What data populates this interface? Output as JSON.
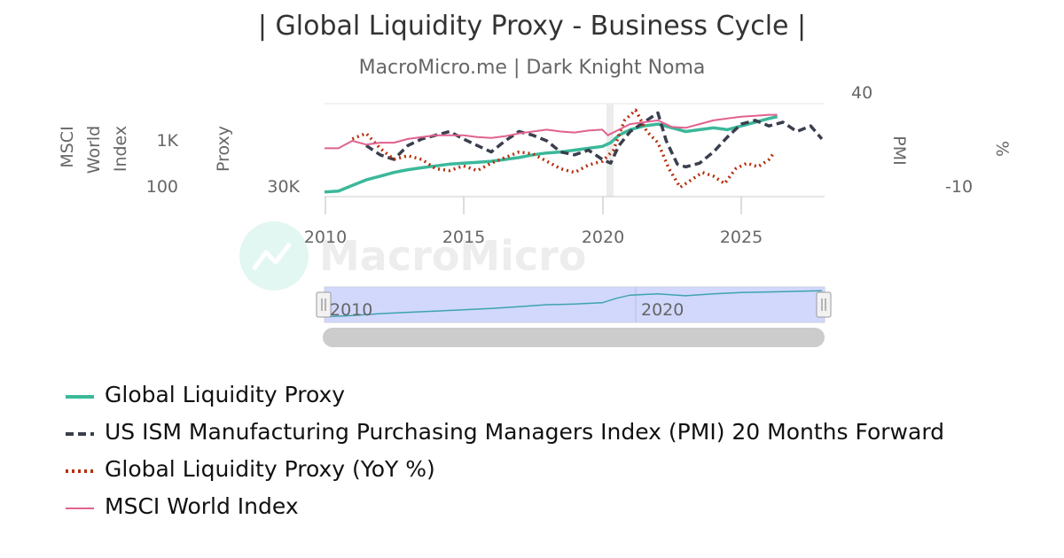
{
  "header": {
    "title": "| Global Liquidity Proxy - Business Cycle |",
    "subtitle": "MacroMicro.me | Dark Knight Noma"
  },
  "watermark": {
    "text": "MacroMicro"
  },
  "axes": {
    "msci_label": "MSCI World Index",
    "msci_ticks": [
      "1K",
      "100"
    ],
    "proxy_label": "Proxy",
    "proxy_ticks": [
      "30K"
    ],
    "pmi_label": "PMI",
    "pct_label": "%",
    "right_ticks": [
      "40",
      "-10"
    ],
    "x_ticks": [
      "2010",
      "2015",
      "2020",
      "2025"
    ]
  },
  "navigator": {
    "ticks": [
      "2010",
      "2020"
    ]
  },
  "legend": {
    "items": [
      {
        "label": "Global Liquidity Proxy",
        "color": "#3bb89a",
        "style": "solid"
      },
      {
        "label": "US ISM Manufacturing Purchasing Managers Index (PMI) 20 Months Forward",
        "color": "#3a3f4e",
        "style": "dashed"
      },
      {
        "label": "Global Liquidity Proxy (YoY %)",
        "color": "#b5300e",
        "style": "dotted"
      },
      {
        "label": "MSCI World Index",
        "color": "#e0628f",
        "style": "solid"
      }
    ]
  },
  "chart_data": {
    "type": "line",
    "title": "| Global Liquidity Proxy - Business Cycle |",
    "subtitle": "MacroMicro.me | Dark Knight Noma",
    "x_range": [
      2010,
      2028
    ],
    "series": [
      {
        "name": "Global Liquidity Proxy",
        "axis": "Proxy",
        "color": "#3bb89a",
        "points": [
          [
            2010.0,
            0.05
          ],
          [
            2010.5,
            0.06
          ],
          [
            2011.0,
            0.12
          ],
          [
            2011.5,
            0.18
          ],
          [
            2012.0,
            0.22
          ],
          [
            2012.5,
            0.26
          ],
          [
            2013.0,
            0.29
          ],
          [
            2013.5,
            0.31
          ],
          [
            2014.0,
            0.33
          ],
          [
            2014.5,
            0.35
          ],
          [
            2015.0,
            0.36
          ],
          [
            2015.5,
            0.37
          ],
          [
            2016.0,
            0.38
          ],
          [
            2016.5,
            0.4
          ],
          [
            2017.0,
            0.42
          ],
          [
            2017.5,
            0.45
          ],
          [
            2018.0,
            0.47
          ],
          [
            2018.5,
            0.48
          ],
          [
            2019.0,
            0.5
          ],
          [
            2019.5,
            0.52
          ],
          [
            2020.0,
            0.54
          ],
          [
            2020.3,
            0.58
          ],
          [
            2020.6,
            0.66
          ],
          [
            2021.0,
            0.72
          ],
          [
            2021.5,
            0.76
          ],
          [
            2022.0,
            0.78
          ],
          [
            2022.5,
            0.74
          ],
          [
            2023.0,
            0.7
          ],
          [
            2023.5,
            0.72
          ],
          [
            2024.0,
            0.74
          ],
          [
            2024.5,
            0.72
          ],
          [
            2025.0,
            0.76
          ],
          [
            2025.5,
            0.8
          ],
          [
            2026.0,
            0.84
          ],
          [
            2026.3,
            0.86
          ]
        ]
      },
      {
        "name": "US ISM Manufacturing Purchasing Managers Index (PMI) 20 Months Forward",
        "axis": "PMI",
        "color": "#3a3f4e",
        "points": [
          [
            2011.5,
            0.55
          ],
          [
            2012.0,
            0.45
          ],
          [
            2012.5,
            0.4
          ],
          [
            2013.0,
            0.55
          ],
          [
            2013.5,
            0.62
          ],
          [
            2014.0,
            0.66
          ],
          [
            2014.5,
            0.7
          ],
          [
            2015.0,
            0.62
          ],
          [
            2015.5,
            0.55
          ],
          [
            2016.0,
            0.48
          ],
          [
            2016.5,
            0.6
          ],
          [
            2017.0,
            0.7
          ],
          [
            2017.5,
            0.66
          ],
          [
            2018.0,
            0.6
          ],
          [
            2018.5,
            0.48
          ],
          [
            2019.0,
            0.45
          ],
          [
            2019.5,
            0.5
          ],
          [
            2020.0,
            0.4
          ],
          [
            2020.3,
            0.36
          ],
          [
            2020.6,
            0.55
          ],
          [
            2021.0,
            0.7
          ],
          [
            2021.5,
            0.8
          ],
          [
            2022.0,
            0.9
          ],
          [
            2022.3,
            0.6
          ],
          [
            2022.7,
            0.35
          ],
          [
            2023.0,
            0.32
          ],
          [
            2023.5,
            0.36
          ],
          [
            2024.0,
            0.48
          ],
          [
            2024.5,
            0.64
          ],
          [
            2025.0,
            0.78
          ],
          [
            2025.5,
            0.82
          ],
          [
            2026.0,
            0.76
          ],
          [
            2026.5,
            0.8
          ],
          [
            2027.0,
            0.7
          ],
          [
            2027.5,
            0.76
          ],
          [
            2027.9,
            0.62
          ]
        ]
      },
      {
        "name": "Global Liquidity Proxy (YoY %)",
        "axis": "%",
        "color": "#b5300e",
        "points": [
          [
            2011.0,
            0.62
          ],
          [
            2011.5,
            0.68
          ],
          [
            2012.0,
            0.52
          ],
          [
            2012.5,
            0.4
          ],
          [
            2013.0,
            0.44
          ],
          [
            2013.5,
            0.4
          ],
          [
            2014.0,
            0.3
          ],
          [
            2014.5,
            0.28
          ],
          [
            2015.0,
            0.33
          ],
          [
            2015.5,
            0.28
          ],
          [
            2016.0,
            0.36
          ],
          [
            2016.5,
            0.42
          ],
          [
            2017.0,
            0.48
          ],
          [
            2017.5,
            0.46
          ],
          [
            2018.0,
            0.38
          ],
          [
            2018.5,
            0.3
          ],
          [
            2019.0,
            0.26
          ],
          [
            2019.5,
            0.34
          ],
          [
            2020.0,
            0.38
          ],
          [
            2020.4,
            0.5
          ],
          [
            2020.8,
            0.82
          ],
          [
            2021.2,
            0.93
          ],
          [
            2021.6,
            0.7
          ],
          [
            2022.0,
            0.58
          ],
          [
            2022.4,
            0.3
          ],
          [
            2022.8,
            0.1
          ],
          [
            2023.2,
            0.18
          ],
          [
            2023.6,
            0.26
          ],
          [
            2024.0,
            0.22
          ],
          [
            2024.4,
            0.14
          ],
          [
            2024.8,
            0.3
          ],
          [
            2025.2,
            0.36
          ],
          [
            2025.6,
            0.32
          ],
          [
            2026.0,
            0.4
          ],
          [
            2026.2,
            0.48
          ]
        ]
      },
      {
        "name": "MSCI World Index",
        "axis": "MSCI World Index",
        "color": "#e0628f",
        "points": [
          [
            2010.0,
            0.52
          ],
          [
            2010.5,
            0.52
          ],
          [
            2011.0,
            0.6
          ],
          [
            2011.5,
            0.56
          ],
          [
            2012.0,
            0.58
          ],
          [
            2012.5,
            0.58
          ],
          [
            2013.0,
            0.62
          ],
          [
            2013.5,
            0.64
          ],
          [
            2014.0,
            0.66
          ],
          [
            2014.5,
            0.66
          ],
          [
            2015.0,
            0.66
          ],
          [
            2015.5,
            0.64
          ],
          [
            2016.0,
            0.63
          ],
          [
            2016.5,
            0.65
          ],
          [
            2017.0,
            0.68
          ],
          [
            2017.5,
            0.7
          ],
          [
            2018.0,
            0.72
          ],
          [
            2018.5,
            0.7
          ],
          [
            2019.0,
            0.69
          ],
          [
            2019.5,
            0.71
          ],
          [
            2020.0,
            0.72
          ],
          [
            2020.2,
            0.66
          ],
          [
            2020.6,
            0.72
          ],
          [
            2021.0,
            0.78
          ],
          [
            2021.5,
            0.8
          ],
          [
            2022.0,
            0.82
          ],
          [
            2022.5,
            0.75
          ],
          [
            2023.0,
            0.74
          ],
          [
            2023.5,
            0.78
          ],
          [
            2024.0,
            0.82
          ],
          [
            2024.5,
            0.84
          ],
          [
            2025.0,
            0.86
          ],
          [
            2025.5,
            0.87
          ],
          [
            2026.0,
            0.88
          ],
          [
            2026.3,
            0.88
          ]
        ]
      }
    ],
    "navigator_points": [
      [
        2010.0,
        0.12
      ],
      [
        2011.0,
        0.16
      ],
      [
        2012.0,
        0.22
      ],
      [
        2013.0,
        0.26
      ],
      [
        2014.0,
        0.3
      ],
      [
        2015.0,
        0.34
      ],
      [
        2016.0,
        0.38
      ],
      [
        2017.0,
        0.44
      ],
      [
        2018.0,
        0.5
      ],
      [
        2019.0,
        0.52
      ],
      [
        2020.0,
        0.56
      ],
      [
        2020.5,
        0.7
      ],
      [
        2021.0,
        0.8
      ],
      [
        2022.0,
        0.84
      ],
      [
        2023.0,
        0.78
      ],
      [
        2024.0,
        0.84
      ],
      [
        2025.0,
        0.88
      ],
      [
        2026.0,
        0.9
      ],
      [
        2027.0,
        0.92
      ],
      [
        2027.9,
        0.94
      ]
    ],
    "recession_band": [
      2020.0,
      2020.3
    ],
    "grid": true,
    "legend_position": "bottom-left"
  }
}
